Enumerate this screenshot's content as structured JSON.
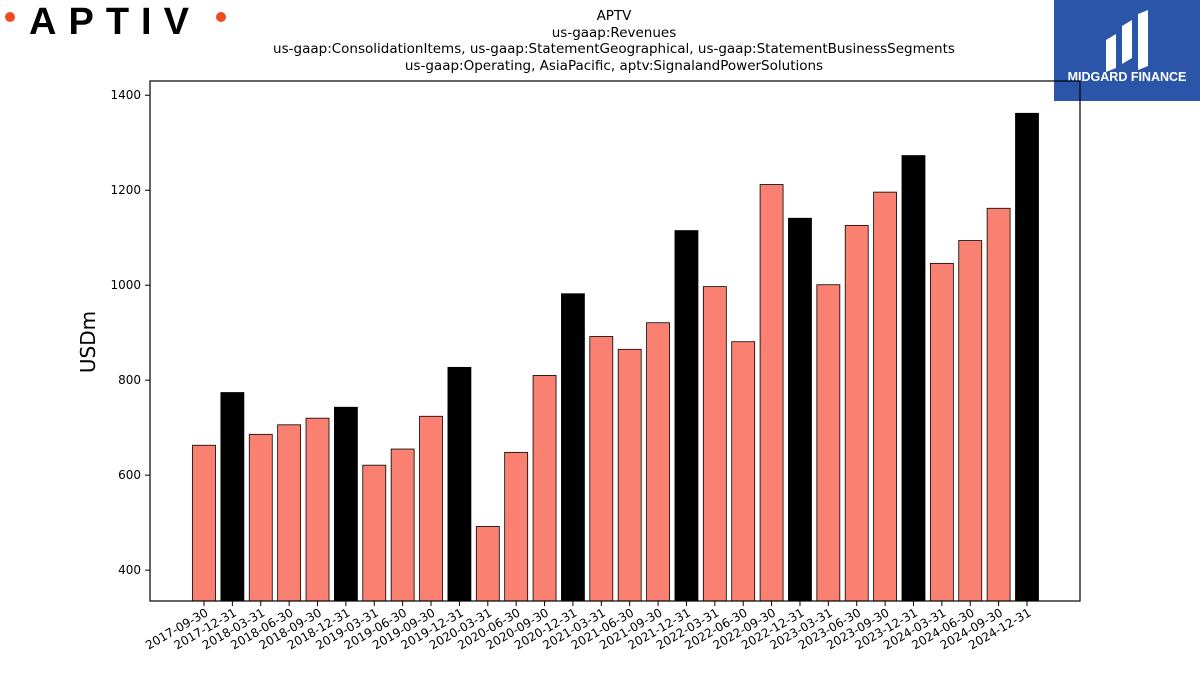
{
  "brand": {
    "company_logo_text": "APTIV",
    "partner_logo_text": "MIDGARD FINANCE",
    "colors": {
      "accent_dot": "#f04a23",
      "partner_bg": "#2b55a8",
      "partner_text": "#ffffff"
    }
  },
  "chart_data": {
    "type": "bar",
    "title_lines": [
      "APTV",
      "us-gaap:Revenues",
      "us-gaap:ConsolidationItems, us-gaap:StatementGeographical, us-gaap:StatementBusinessSegments",
      "us-gaap:Operating, AsiaPacific, aptv:SignalandPowerSolutions"
    ],
    "xlabel": "",
    "ylabel": "USDm",
    "ylim": [
      335,
      1430
    ],
    "yticks": [
      400,
      600,
      800,
      1000,
      1200,
      1400
    ],
    "grid": false,
    "colors": {
      "quarter": "#fa8072",
      "year_end": "#000000"
    },
    "categories": [
      "2017-09-30",
      "2017-12-31",
      "2018-03-31",
      "2018-06-30",
      "2018-09-30",
      "2018-12-31",
      "2019-03-31",
      "2019-06-30",
      "2019-09-30",
      "2019-12-31",
      "2020-03-31",
      "2020-06-30",
      "2020-09-30",
      "2020-12-31",
      "2021-03-31",
      "2021-06-30",
      "2021-09-30",
      "2021-12-31",
      "2022-03-31",
      "2022-06-30",
      "2022-09-30",
      "2022-12-31",
      "2023-03-31",
      "2023-06-30",
      "2023-09-30",
      "2023-12-31",
      "2024-03-31",
      "2024-06-30",
      "2024-09-30",
      "2024-12-31"
    ],
    "values": [
      663,
      774,
      686,
      706,
      720,
      743,
      621,
      655,
      724,
      827,
      492,
      648,
      810,
      982,
      892,
      865,
      921,
      1115,
      997,
      881,
      1212,
      1141,
      1001,
      1126,
      1196,
      1273,
      1046,
      1094,
      1162,
      1362
    ]
  }
}
